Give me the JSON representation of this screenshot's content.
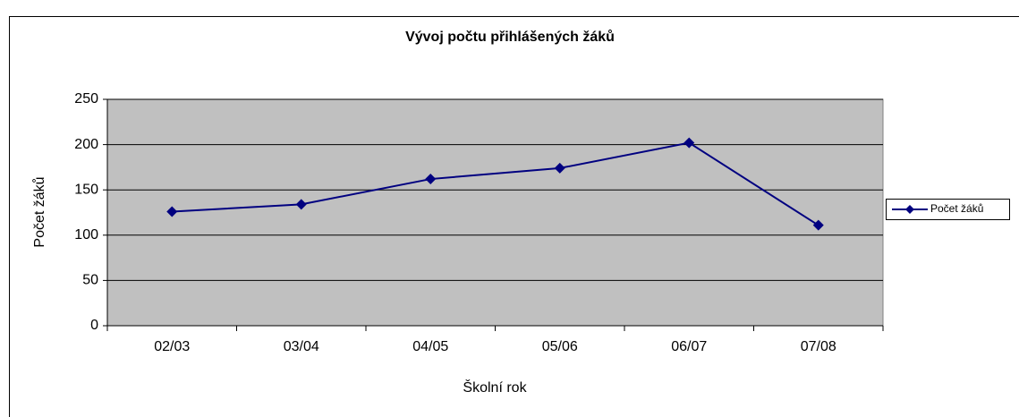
{
  "chart_data": {
    "type": "line",
    "title": "Vývoj počtu přihlášených žáků",
    "x_label": "Školní rok",
    "y_label": "Počet žáků",
    "categories": [
      "02/03",
      "03/04",
      "04/05",
      "05/06",
      "06/07",
      "07/08"
    ],
    "series": [
      {
        "name": "Počet žáků",
        "color": "#000080",
        "values": [
          126,
          134,
          162,
          174,
          202,
          111
        ]
      }
    ],
    "ylim": [
      0,
      250
    ],
    "yticks": [
      0,
      50,
      100,
      150,
      200,
      250
    ],
    "grid": true,
    "legend": "right"
  }
}
